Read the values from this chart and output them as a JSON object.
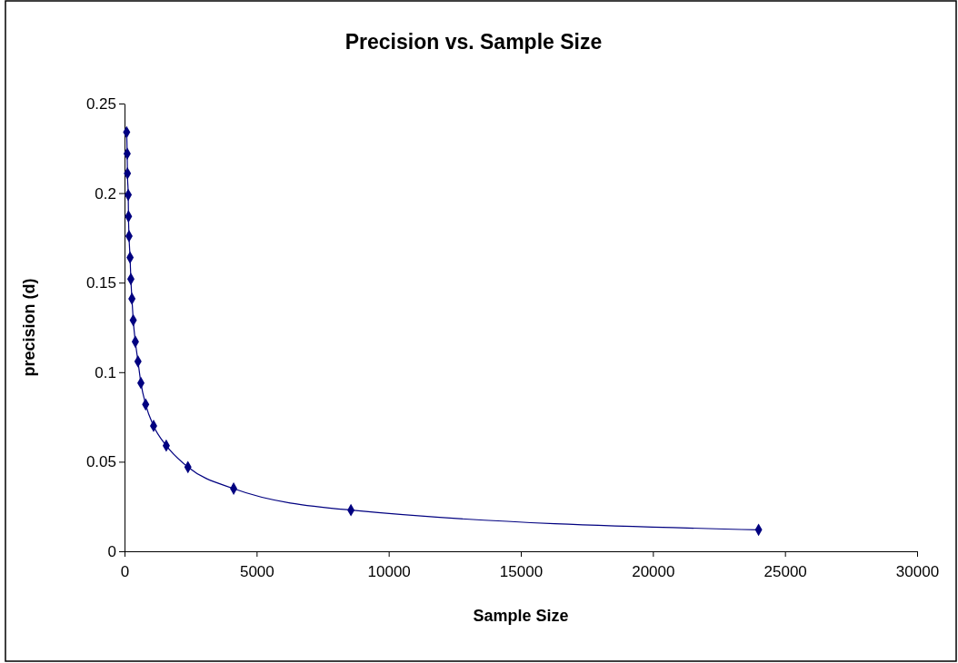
{
  "chart_data": {
    "type": "line",
    "title": "Precision vs. Sample Size",
    "xlabel": "Sample Size",
    "ylabel": "precision (d)",
    "x": [
      80,
      100,
      110,
      140,
      150,
      170,
      210,
      240,
      280,
      330,
      410,
      510,
      620,
      800,
      1100,
      1580,
      2400,
      4130,
      8570,
      24000
    ],
    "series": [
      {
        "color": "#000080",
        "values": [
          0.234,
          0.222,
          0.211,
          0.199,
          0.187,
          0.176,
          0.164,
          0.152,
          0.141,
          0.129,
          0.117,
          0.106,
          0.094,
          0.082,
          0.07,
          0.059,
          0.047,
          0.035,
          0.023,
          0.012
        ]
      }
    ],
    "xlim": [
      0,
      30000
    ],
    "xticks": [
      0,
      5000,
      10000,
      15000,
      20000,
      25000,
      30000
    ],
    "ylim": [
      0,
      0.25
    ],
    "yticks": [
      0,
      0.05,
      0.1,
      0.15,
      0.2,
      0.25
    ],
    "marker": "diamond",
    "line_style": "solid",
    "grid": false,
    "legend": false
  }
}
